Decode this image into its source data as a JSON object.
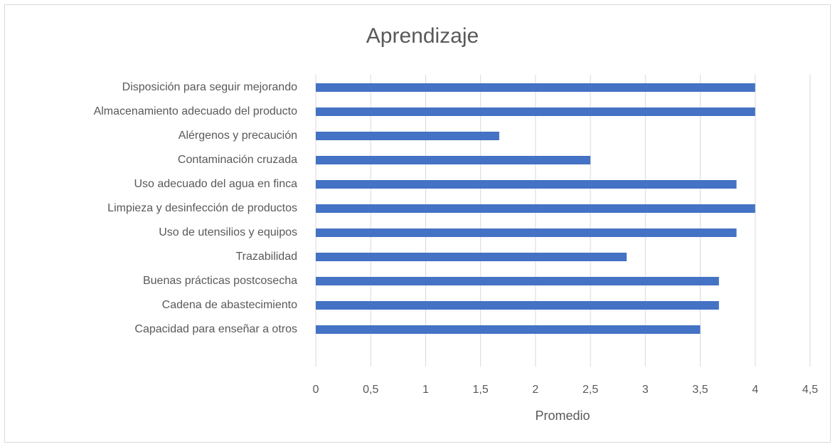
{
  "chart_data": {
    "type": "bar",
    "orientation": "horizontal",
    "title": "Aprendizaje",
    "x_label": "Promedio",
    "categories": [
      "Disposición para seguir mejorando",
      "Almacenamiento adecuado del producto",
      "Alérgenos y precaución",
      "Contaminación cruzada",
      "Uso adecuado del agua en finca",
      "Limpieza y desinfección de productos",
      "Uso de utensilios y equipos",
      "Trazabilidad",
      "Buenas prácticas postcosecha",
      "Cadena de abastecimiento",
      "Capacidad para enseñar a otros"
    ],
    "values": [
      4,
      4,
      1.67,
      2.5,
      3.83,
      4,
      3.83,
      2.83,
      3.67,
      3.67,
      3.5
    ],
    "color": "#4472c4",
    "xlim": [
      0,
      4.5
    ],
    "xticks": [
      0,
      {
        "value": 0.5,
        "label": "0,5"
      },
      1,
      {
        "value": 1.5,
        "label": "1,5"
      },
      2,
      {
        "value": 2.5,
        "label": "2,5"
      },
      3,
      {
        "value": 3.5,
        "label": "3,5"
      },
      4,
      {
        "value": 4.5,
        "label": "4,5"
      }
    ],
    "grid": true
  }
}
